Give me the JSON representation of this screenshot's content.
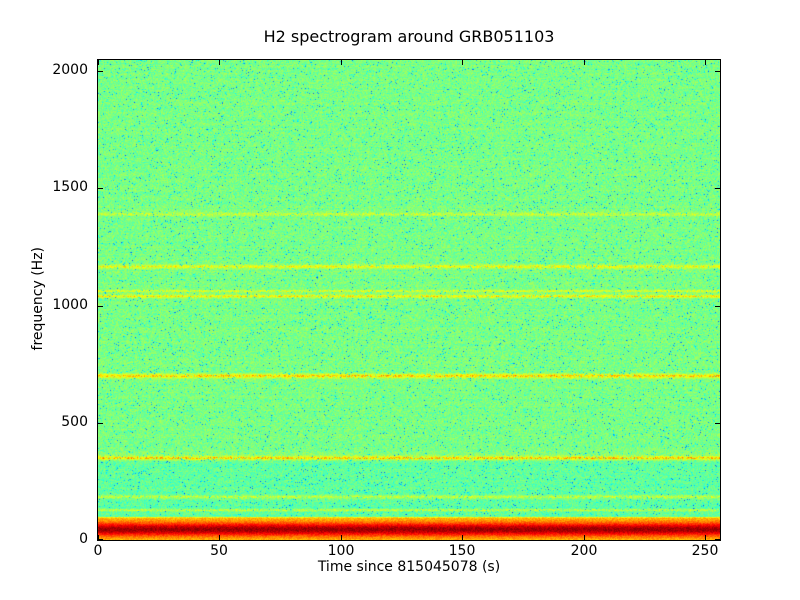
{
  "chart_data": {
    "type": "heatmap",
    "subtype": "spectrogram",
    "title": "H2 spectrogram around GRB051103",
    "xlabel": "Time since 815045078 (s)",
    "ylabel": "frequency (Hz)",
    "xlim": [
      0,
      256
    ],
    "ylim": [
      0,
      2048
    ],
    "x_ticks": [
      0,
      50,
      100,
      150,
      200,
      250
    ],
    "y_ticks": [
      0,
      500,
      1000,
      1500,
      2000
    ],
    "grid": false,
    "legend": "none",
    "colormap": "jet",
    "colors": {
      "background_green": "#80ff80",
      "teal_speckle": "#1affe6",
      "blue_speckle": "#0094ff",
      "line_yellow": "#ffe600",
      "line_orange": "#ff8000",
      "band_dark_red": "#b30000",
      "axes": "#000000",
      "figure_background": "#ffffff"
    },
    "background": {
      "base_level_low_region": 0.472,
      "base_level_high_region": 0.497,
      "transition_hz": 360,
      "noise_amplitude": 0.045,
      "teal_speckle_probability": 0.05,
      "blue_speckle_probability": 0.01
    },
    "spectral_lines": [
      {
        "frequency_hz": 127,
        "strength": 0.08,
        "width_hz": 4
      },
      {
        "frequency_hz": 183,
        "strength": 0.09,
        "width_hz": 5
      },
      {
        "frequency_hz": 350,
        "strength": 0.19,
        "width_hz": 6
      },
      {
        "frequency_hz": 700,
        "strength": 0.17,
        "width_hz": 6
      },
      {
        "frequency_hz": 1040,
        "strength": 0.13,
        "width_hz": 5
      },
      {
        "frequency_hz": 1062,
        "strength": 0.09,
        "width_hz": 4
      },
      {
        "frequency_hz": 1166,
        "strength": 0.11,
        "width_hz": 6
      },
      {
        "frequency_hz": 1390,
        "strength": 0.07,
        "width_hz": 5
      }
    ],
    "low_frequency_band": {
      "center_hz": 45,
      "sigma_hz": 20,
      "peak_level": 0.97,
      "floor_level": 0.68,
      "extent_hz": 110
    }
  }
}
